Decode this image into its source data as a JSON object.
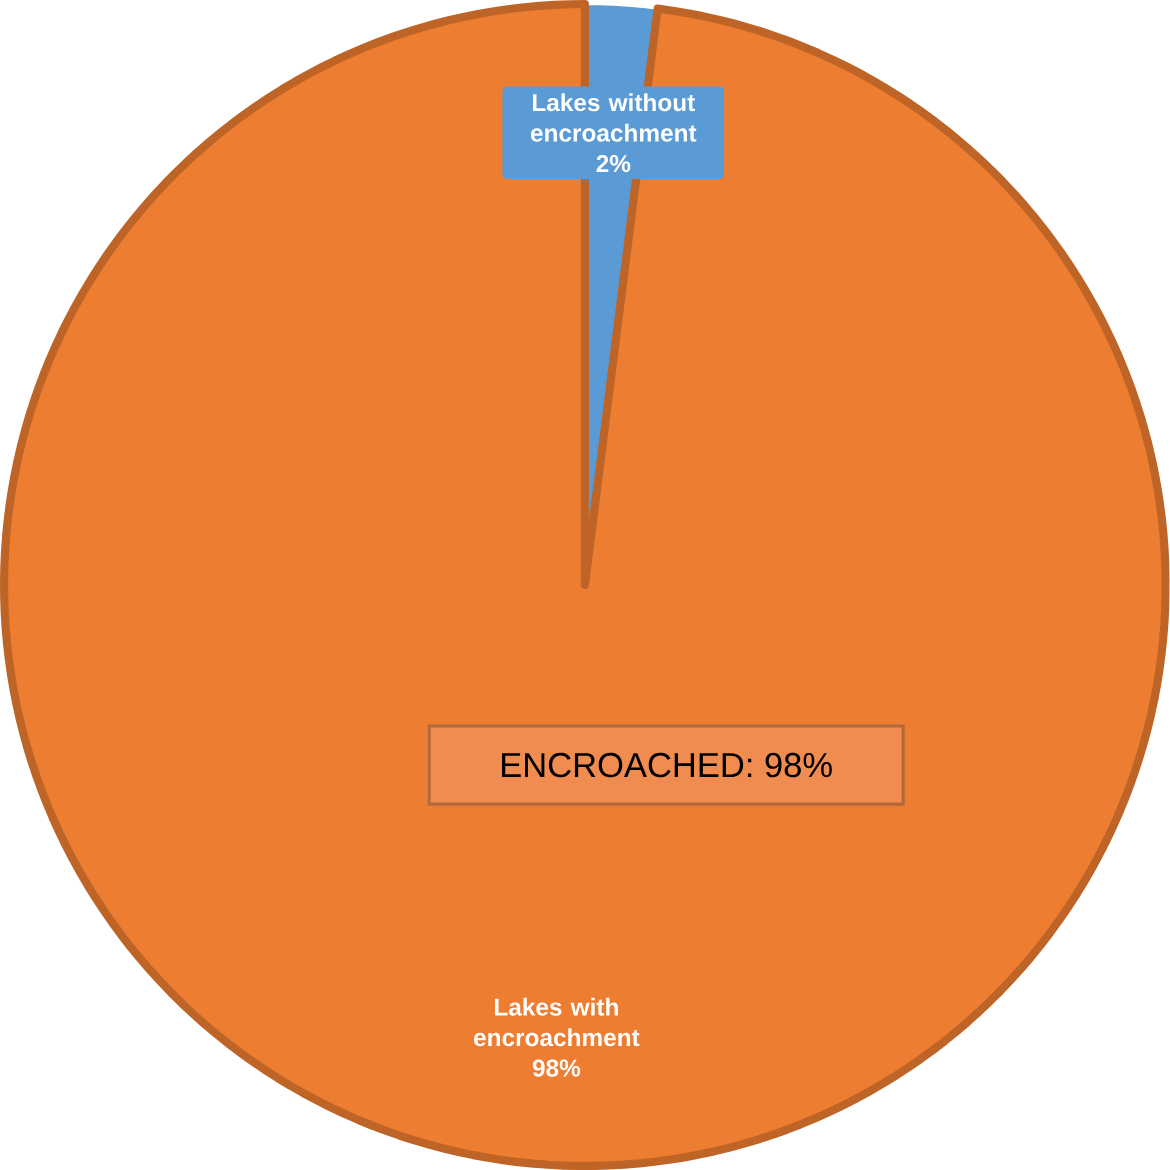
{
  "chart_data": {
    "type": "pie",
    "categories": [
      "Lakes without encroachment",
      "Lakes with encroachment"
    ],
    "values": [
      2,
      98
    ],
    "colors": [
      "#5b9bd5",
      "#ed7d31"
    ],
    "value_labels": [
      "2%",
      "98%"
    ],
    "annotations": [
      "ENCROACHED: 98%"
    ]
  }
}
